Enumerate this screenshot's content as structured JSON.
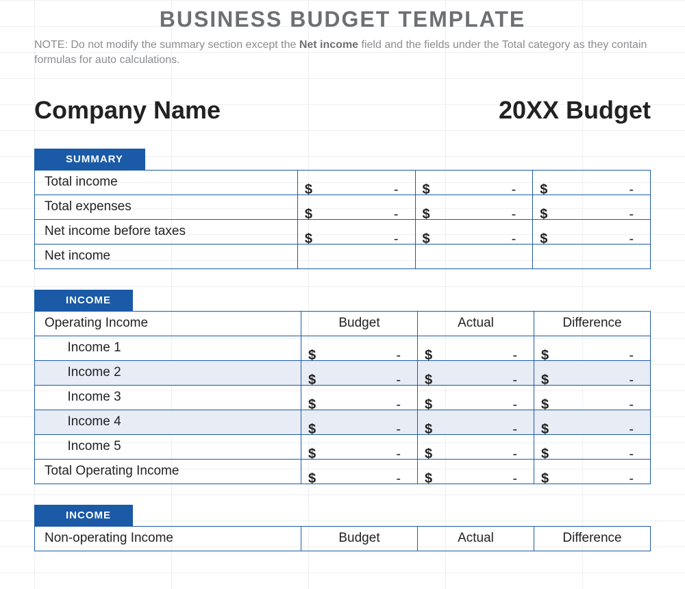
{
  "colors": {
    "accent": "#1b5aa6",
    "grid": "#e3e6ea",
    "alt_row": "#e7ecf5",
    "title_text": "#6d6f72",
    "body_text": "#222222",
    "note_text": "#8a8c8f",
    "tab_text": "#ffffff",
    "background": "#ffffff"
  },
  "typography": {
    "title_fontsize": 32,
    "header_fontsize": 36,
    "body_fontsize": 19,
    "tab_fontsize": 15
  },
  "title": "BUSINESS BUDGET TEMPLATE",
  "note": {
    "prefix": "NOTE: Do not modify the summary section except the ",
    "bold": "Net income",
    "suffix": " field and the fields under the Total category as they contain formulas for auto calculations."
  },
  "header": {
    "company": "Company Name",
    "year": "20XX Budget"
  },
  "currency_symbol": "$",
  "empty_value": "-",
  "summary": {
    "tab": "SUMMARY",
    "rows": [
      {
        "label": "Total income",
        "budget": "-",
        "actual": "-",
        "diff": "-"
      },
      {
        "label": "Total expenses",
        "budget": "-",
        "actual": "-",
        "diff": "-"
      },
      {
        "label": "Net income before taxes",
        "budget": "-",
        "actual": "-",
        "diff": "-"
      },
      {
        "label": "Net income",
        "budget": "",
        "actual": "",
        "diff": ""
      }
    ]
  },
  "income1": {
    "tab": "INCOME",
    "section_label": "Operating Income",
    "col_headers": [
      "Budget",
      "Actual",
      "Difference"
    ],
    "rows": [
      {
        "label": "Income 1",
        "budget": "-",
        "actual": "-",
        "diff": "-",
        "alt": false
      },
      {
        "label": "Income 2",
        "budget": "-",
        "actual": "-",
        "diff": "-",
        "alt": true
      },
      {
        "label": "Income 3",
        "budget": "-",
        "actual": "-",
        "diff": "-",
        "alt": false
      },
      {
        "label": "Income 4",
        "budget": "-",
        "actual": "-",
        "diff": "-",
        "alt": true
      },
      {
        "label": "Income 5",
        "budget": "-",
        "actual": "-",
        "diff": "-",
        "alt": false
      }
    ],
    "total_label": "Total Operating Income",
    "total": {
      "budget": "-",
      "actual": "-",
      "diff": "-"
    }
  },
  "income2": {
    "tab": "INCOME",
    "section_label": "Non-operating Income",
    "col_headers": [
      "Budget",
      "Actual",
      "Difference"
    ]
  }
}
